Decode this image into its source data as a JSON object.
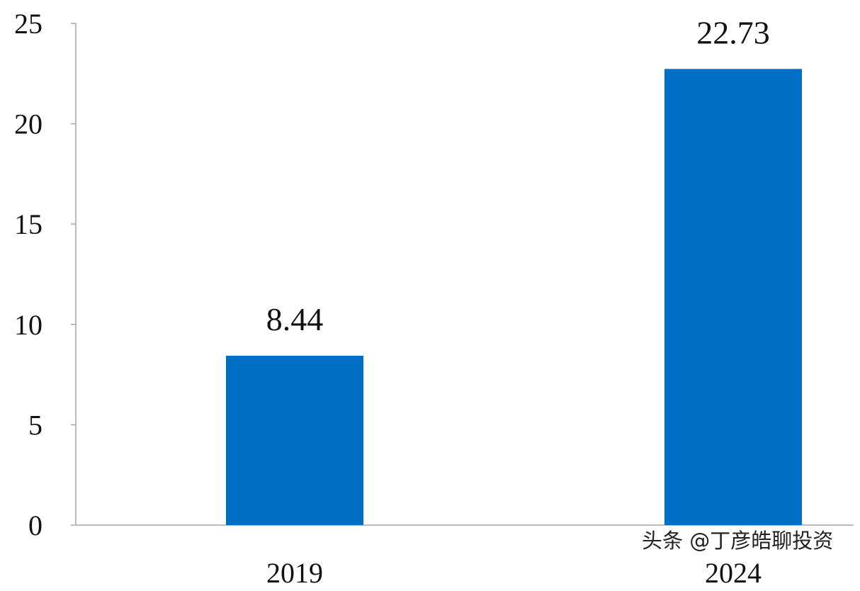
{
  "chart_data": {
    "type": "bar",
    "categories": [
      "2019",
      "2024"
    ],
    "values": [
      8.44,
      22.73
    ],
    "data_labels": [
      "8.44",
      "22.73"
    ],
    "title": "",
    "xlabel": "",
    "ylabel": "",
    "ylim": [
      0,
      25
    ],
    "yticks": [
      0,
      5,
      10,
      15,
      20,
      25
    ],
    "grid": false,
    "bar_color": "#0070C6",
    "axis_color": "#a6a6a6"
  },
  "watermark": "头条 @丁彦皓聊投资"
}
